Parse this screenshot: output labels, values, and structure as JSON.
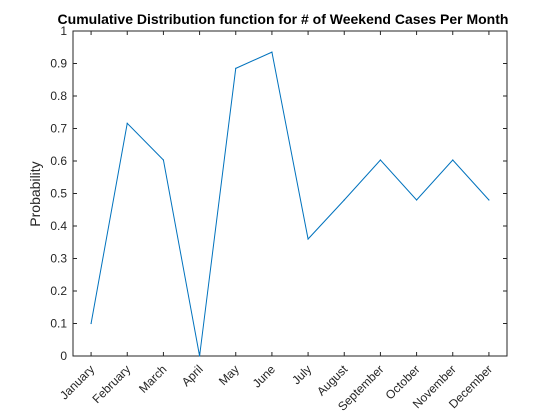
{
  "chart_data": {
    "type": "line",
    "title": "Cumulative Distribution function for # of Weekend Cases Per Month",
    "xlabel": "",
    "ylabel": "Probability",
    "categories": [
      "January",
      "February",
      "March",
      "April",
      "May",
      "June",
      "July",
      "August",
      "September",
      "October",
      "November",
      "December"
    ],
    "series": [
      {
        "values": [
          0.1,
          0.716,
          0.603,
          0.0,
          0.885,
          0.935,
          0.36,
          0.48,
          0.603,
          0.48,
          0.603,
          0.48
        ],
        "color": "#0072BD"
      }
    ],
    "ylim": [
      0,
      1
    ],
    "yticks": [
      "0",
      "0.1",
      "0.2",
      "0.3",
      "0.4",
      "0.5",
      "0.6",
      "0.7",
      "0.8",
      "0.9",
      "1"
    ],
    "grid": false,
    "legend": "none",
    "axis_color": "#262626"
  }
}
